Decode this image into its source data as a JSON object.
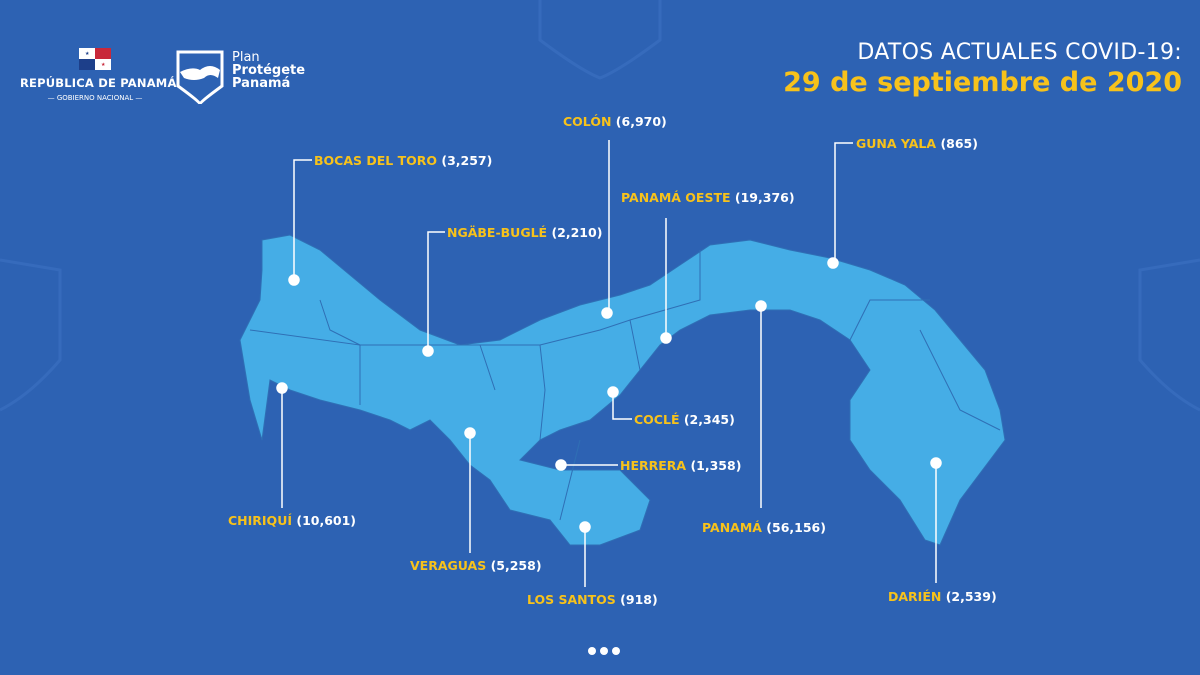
{
  "header": {
    "government_logo": {
      "title": "REPÚBLICA DE PANAMÁ",
      "subtitle": "GOBIERNO NACIONAL"
    },
    "plan_logo": {
      "line1": "Plan",
      "line2": "Protégete",
      "line3": "Panamá"
    },
    "title": "DATOS ACTUALES COVID-19:",
    "date": "29 de septiembre de 2020"
  },
  "colors": {
    "background": "#2d62b3",
    "land": "#45ade6",
    "label": "#f7c21b",
    "count": "#ffffff"
  },
  "regions": [
    {
      "name": "BOCAS DEL TORO",
      "count": "(3,257)"
    },
    {
      "name": "NGÄBE-BUGLÉ",
      "count": "(2,210)"
    },
    {
      "name": "COLÓN",
      "count": "(6,970)"
    },
    {
      "name": "PANAMÁ OESTE",
      "count": "(19,376)"
    },
    {
      "name": "GUNA YALA",
      "count": "(865)"
    },
    {
      "name": "COCLÉ",
      "count": "(2,345)"
    },
    {
      "name": "HERRERA",
      "count": "(1,358)"
    },
    {
      "name": "CHIRIQUÍ",
      "count": "(10,601)"
    },
    {
      "name": "VERAGUAS",
      "count": "(5,258)"
    },
    {
      "name": "LOS SANTOS",
      "count": "(918)"
    },
    {
      "name": "PANAMÁ",
      "count": "(56,156)"
    },
    {
      "name": "DARIÉN",
      "count": "(2,539)"
    }
  ],
  "pagination": {
    "pages": 3
  }
}
